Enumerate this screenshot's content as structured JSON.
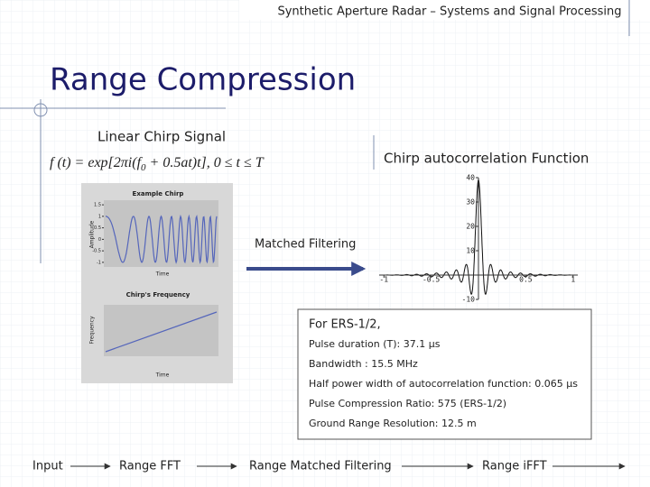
{
  "header": {
    "title": "Synthetic Aperture Radar – Systems and Signal Processing"
  },
  "slide": {
    "title": "Range Compression"
  },
  "chirp_signal": {
    "label": "Linear Chirp Signal",
    "formula_left": "f (t) = exp[2πi(f",
    "formula_sub": "0",
    "formula_right": " + 0.5at)t],    0 ≤ t ≤ T"
  },
  "example_chirp": {
    "title": "Example Chirp",
    "ylabel": "Amplitude",
    "xlabel": "Time",
    "ylim": [
      -1.2,
      1.7
    ],
    "yticks": [
      1.5,
      1,
      0.5,
      0,
      -0.5,
      -1
    ]
  },
  "chirp_frequency": {
    "title": "Chirp's Frequency",
    "ylabel": "Frequency",
    "xlabel": "Time"
  },
  "autocorrelation": {
    "label": "Chirp autocorrelation Function",
    "xlim": [
      -1.05,
      1.05
    ],
    "ylim": [
      -10,
      40
    ],
    "yticks": [
      40,
      30,
      20,
      10,
      -10
    ],
    "xticks": [
      -1,
      -0.5,
      0.5,
      1
    ]
  },
  "matched_filtering": "Matched Filtering",
  "info": {
    "lines": [
      "For ERS-1/2,",
      "Pulse duration (T): 37.1 µs",
      "Bandwidth : 15.5 MHz",
      "Half power width of autocorrelation function: 0.065 µs",
      "Pulse Compression Ratio: 575 (ERS-1/2)",
      "Ground Range Resolution: 12.5 m"
    ]
  },
  "flow": [
    "Input",
    "Range FFT",
    "Range Matched Filtering",
    "Range iFFT"
  ]
}
